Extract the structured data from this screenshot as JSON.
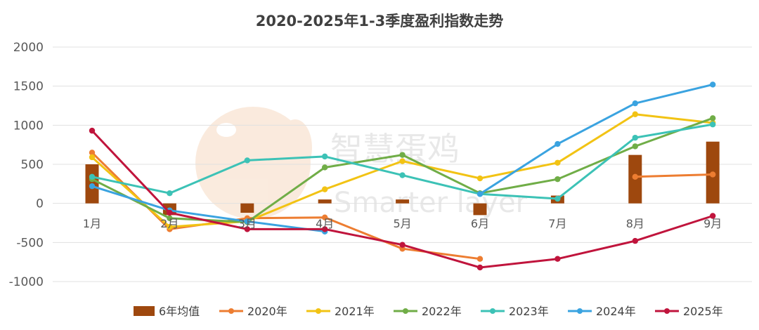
{
  "chart_data": {
    "type": "bar+line",
    "title": "2020-2025年1-3季度盈利指数走势",
    "categories": [
      "1月",
      "2月",
      "3月",
      "4月",
      "5月",
      "6月",
      "7月",
      "8月",
      "9月"
    ],
    "ylim": [
      -1000,
      2000
    ],
    "yticks": [
      -1000,
      -500,
      0,
      500,
      1000,
      1500,
      2000
    ],
    "grid": true,
    "legend_position": "bottom",
    "bar_series": {
      "name": "6年均值",
      "color": "#9E480E",
      "values": [
        500,
        -150,
        -120,
        50,
        50,
        -150,
        100,
        620,
        790
      ]
    },
    "series": [
      {
        "name": "2020年",
        "color": "#ED7D31",
        "values": [
          650,
          -330,
          -190,
          -180,
          -580,
          -710,
          null,
          340,
          370
        ]
      },
      {
        "name": "2021年",
        "color": "#F2C314",
        "values": [
          590,
          -300,
          -230,
          180,
          540,
          320,
          520,
          1140,
          1030
        ]
      },
      {
        "name": "2022年",
        "color": "#70AD47",
        "values": [
          310,
          -190,
          -240,
          460,
          620,
          130,
          310,
          730,
          1090
        ]
      },
      {
        "name": "2023年",
        "color": "#3CC2B6",
        "values": [
          340,
          130,
          550,
          600,
          360,
          120,
          60,
          840,
          1010
        ]
      },
      {
        "name": "2024年",
        "color": "#3AA3E0",
        "values": [
          220,
          -90,
          -230,
          -360,
          null,
          120,
          760,
          1280,
          1520
        ]
      },
      {
        "name": "2025年",
        "color": "#C0143C",
        "values": [
          930,
          -120,
          -330,
          -330,
          -530,
          -820,
          -710,
          -480,
          -160
        ]
      }
    ]
  }
}
